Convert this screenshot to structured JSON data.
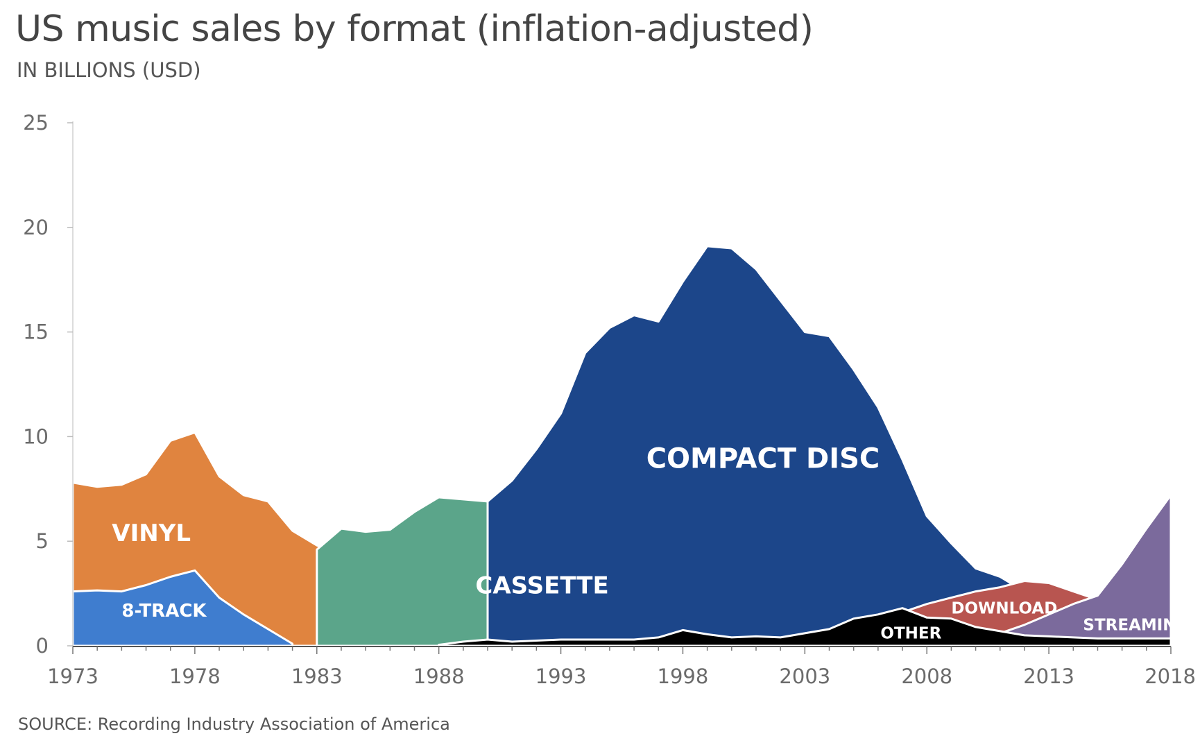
{
  "chart_data": {
    "type": "area",
    "stacking": "overlapping",
    "title": "US music sales by format (inflation-adjusted)",
    "subtitle": "IN BILLIONS (USD)",
    "source": "SOURCE: Recording Industry Association of America",
    "xlim": [
      1973,
      2018
    ],
    "ylim": [
      0,
      25
    ],
    "x_ticks": [
      1973,
      1978,
      1983,
      1988,
      1993,
      1998,
      2003,
      2008,
      2013,
      2018
    ],
    "y_ticks": [
      0,
      5,
      10,
      15,
      20,
      25
    ],
    "grid": false,
    "series": [
      {
        "name": "VINYL",
        "color": "#E0843F",
        "label": {
          "x": 1974.6,
          "y": 5.0,
          "size": 34
        },
        "points": [
          [
            1973,
            7.8
          ],
          [
            1974,
            7.6
          ],
          [
            1975,
            7.7
          ],
          [
            1976,
            8.2
          ],
          [
            1977,
            9.8
          ],
          [
            1978,
            10.2
          ],
          [
            1979,
            8.1
          ],
          [
            1980,
            7.2
          ],
          [
            1981,
            6.9
          ],
          [
            1982,
            5.5
          ],
          [
            1983,
            4.8
          ],
          [
            1984,
            4.3
          ],
          [
            1985,
            3.5
          ],
          [
            1986,
            2.7
          ],
          [
            1987,
            2.1
          ],
          [
            1988,
            1.4
          ],
          [
            1989,
            0.6
          ],
          [
            1990,
            0.2
          ],
          [
            1991,
            0.1
          ]
        ]
      },
      {
        "name": "8-TRACK",
        "color": "#3F7DCF",
        "label": {
          "x": 1975.0,
          "y": 1.4,
          "size": 26
        },
        "points": [
          [
            1973,
            2.6
          ],
          [
            1974,
            2.65
          ],
          [
            1975,
            2.6
          ],
          [
            1976,
            2.9
          ],
          [
            1977,
            3.3
          ],
          [
            1978,
            3.6
          ],
          [
            1979,
            2.3
          ],
          [
            1980,
            1.5
          ],
          [
            1981,
            0.8
          ],
          [
            1982,
            0.1
          ]
        ]
      },
      {
        "name": "CASSETTE",
        "color": "#5BA58A",
        "label": {
          "x": 1989.5,
          "y": 2.5,
          "size": 34
        },
        "points": [
          [
            1983,
            4.6
          ],
          [
            1984,
            5.6
          ],
          [
            1985,
            5.45
          ],
          [
            1986,
            5.55
          ],
          [
            1987,
            6.4
          ],
          [
            1988,
            7.1
          ],
          [
            1989,
            7.0
          ],
          [
            1990,
            6.9
          ],
          [
            1991,
            5.8
          ],
          [
            1992,
            5.95
          ],
          [
            1993,
            5.4
          ],
          [
            1994,
            5.3
          ],
          [
            1995,
            4.1
          ],
          [
            1996,
            3.3
          ],
          [
            1997,
            2.5
          ],
          [
            1998,
            2.2
          ],
          [
            1999,
            1.5
          ],
          [
            2000,
            0.9
          ],
          [
            2001,
            0.5
          ],
          [
            2002,
            0.3
          ]
        ]
      },
      {
        "name": "COMPACT DISC",
        "color": "#1C468A",
        "label": {
          "x": 1996.5,
          "y": 8.5,
          "size": 40
        },
        "points": [
          [
            1990,
            6.9
          ],
          [
            1991,
            7.9
          ],
          [
            1992,
            9.4
          ],
          [
            1993,
            11.1
          ],
          [
            1994,
            14.0
          ],
          [
            1995,
            15.2
          ],
          [
            1996,
            15.8
          ],
          [
            1997,
            15.5
          ],
          [
            1998,
            17.4
          ],
          [
            1999,
            19.1
          ],
          [
            2000,
            19.0
          ],
          [
            2001,
            18.0
          ],
          [
            2002,
            16.5
          ],
          [
            2003,
            15.0
          ],
          [
            2004,
            14.8
          ],
          [
            2005,
            13.2
          ],
          [
            2006,
            11.4
          ],
          [
            2007,
            8.9
          ],
          [
            2008,
            6.2
          ],
          [
            2009,
            4.9
          ],
          [
            2010,
            3.7
          ],
          [
            2011,
            3.3
          ],
          [
            2012,
            2.6
          ]
        ]
      },
      {
        "name": "DOWNLOAD",
        "color": "#B85550",
        "label": {
          "x": 2009.0,
          "y": 1.55,
          "size": 23
        },
        "points": [
          [
            2005,
            1.1
          ],
          [
            2006,
            1.3
          ],
          [
            2007,
            1.6
          ],
          [
            2008,
            2.0
          ],
          [
            2009,
            2.3
          ],
          [
            2010,
            2.6
          ],
          [
            2011,
            2.8
          ],
          [
            2012,
            3.1
          ],
          [
            2013,
            3.0
          ],
          [
            2014,
            2.6
          ],
          [
            2015,
            2.2
          ],
          [
            2016,
            1.8
          ],
          [
            2017,
            1.4
          ],
          [
            2018,
            1.1
          ]
        ]
      },
      {
        "name": "STREAMING",
        "color": "#7B6A9C",
        "label": {
          "x": 2014.4,
          "y": 0.75,
          "size": 23
        },
        "points": [
          [
            2011,
            0.6
          ],
          [
            2012,
            1.0
          ],
          [
            2013,
            1.5
          ],
          [
            2014,
            2.0
          ],
          [
            2015,
            2.4
          ],
          [
            2016,
            3.9
          ],
          [
            2017,
            5.6
          ],
          [
            2018,
            7.2
          ]
        ]
      },
      {
        "name": "OTHER",
        "color": "#000000",
        "label": {
          "x": 2006.1,
          "y": 0.35,
          "size": 23
        },
        "points": [
          [
            1988,
            0.05
          ],
          [
            1989,
            0.2
          ],
          [
            1990,
            0.3
          ],
          [
            1991,
            0.2
          ],
          [
            1992,
            0.25
          ],
          [
            1993,
            0.3
          ],
          [
            1994,
            0.3
          ],
          [
            1995,
            0.3
          ],
          [
            1996,
            0.3
          ],
          [
            1997,
            0.4
          ],
          [
            1998,
            0.75
          ],
          [
            1999,
            0.55
          ],
          [
            2000,
            0.4
          ],
          [
            2001,
            0.45
          ],
          [
            2002,
            0.4
          ],
          [
            2003,
            0.6
          ],
          [
            2004,
            0.8
          ],
          [
            2005,
            1.3
          ],
          [
            2006,
            1.5
          ],
          [
            2007,
            1.8
          ],
          [
            2008,
            1.35
          ],
          [
            2009,
            1.3
          ],
          [
            2010,
            0.9
          ],
          [
            2011,
            0.7
          ],
          [
            2012,
            0.5
          ],
          [
            2013,
            0.45
          ],
          [
            2014,
            0.4
          ],
          [
            2015,
            0.35
          ],
          [
            2016,
            0.35
          ],
          [
            2017,
            0.35
          ],
          [
            2018,
            0.35
          ]
        ]
      }
    ]
  }
}
